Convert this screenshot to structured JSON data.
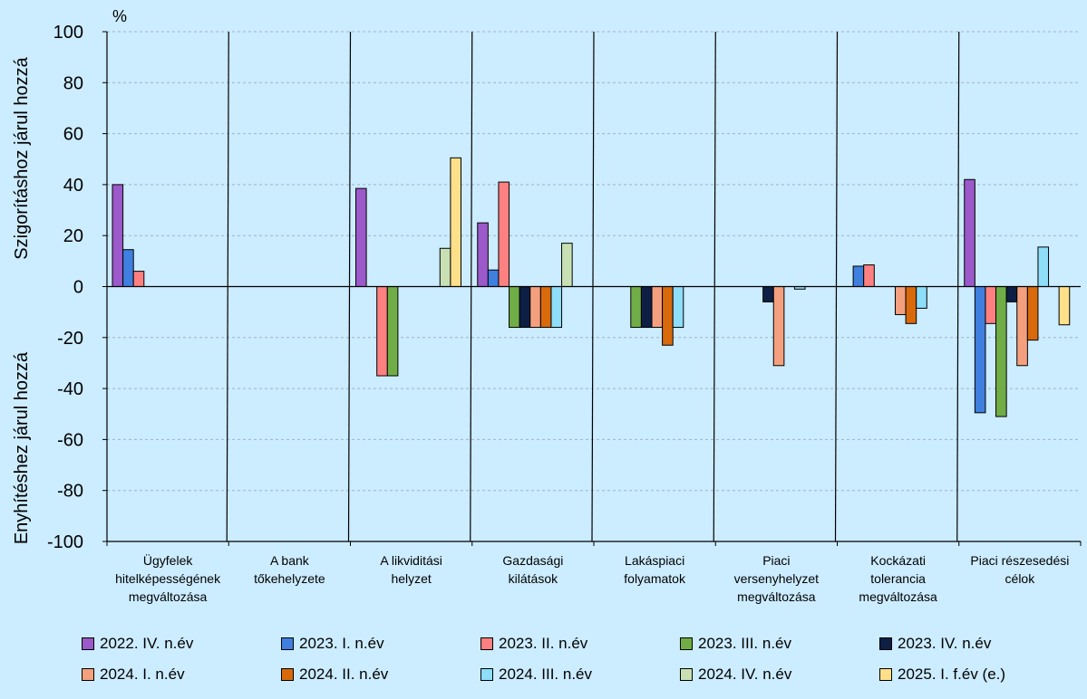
{
  "chart_data": {
    "type": "bar",
    "unit_label": "%",
    "ylabel_top": "Szigorításhoz járul hozzá",
    "ylabel_bottom": "Enyhítéshez járul hozzá",
    "ylim": [
      -100,
      100
    ],
    "yticks": [
      -100,
      -80,
      -60,
      -40,
      -20,
      0,
      20,
      40,
      60,
      80,
      100
    ],
    "grid": true,
    "legend_position": "bottom",
    "categories": [
      [
        "Ügyfelek",
        "hitelképességének",
        "megváltozása"
      ],
      [
        "A bank",
        "tőkehelyzete"
      ],
      [
        "A likviditási",
        "helyzet"
      ],
      [
        "Gazdasági",
        "kilátások"
      ],
      [
        "Lakáspiaci",
        "folyamatok"
      ],
      [
        "Piaci",
        "versenyhelyzet",
        "megváltozása"
      ],
      [
        "Kockázati",
        "tolerancia",
        "megváltozása"
      ],
      [
        "Piaci részesedési",
        "célok"
      ]
    ],
    "series": [
      {
        "name": "2022. IV. n.év",
        "color": "#9B59C9",
        "values": [
          40,
          0,
          38.5,
          25,
          0,
          0,
          0,
          42
        ]
      },
      {
        "name": "2023. I. n.év",
        "color": "#3F7FDF",
        "values": [
          14.5,
          0,
          0,
          6.5,
          0,
          0,
          8,
          -49.5
        ]
      },
      {
        "name": "2023. II. n.év",
        "color": "#FF8080",
        "values": [
          6,
          0,
          -35,
          41,
          0,
          0,
          8.5,
          -14.5
        ]
      },
      {
        "name": "2023. III. n.év",
        "color": "#70AD47",
        "values": [
          0,
          0,
          -35,
          -16,
          -16,
          0,
          0,
          -51
        ]
      },
      {
        "name": "2023. IV. n.év",
        "color": "#0E1F45",
        "values": [
          0,
          0,
          0,
          -16,
          -16,
          -6,
          0,
          -6
        ]
      },
      {
        "name": "2024. I. n.év",
        "color": "#F4A07E",
        "values": [
          0,
          0,
          0,
          -16,
          -16,
          -31,
          -11,
          -31
        ]
      },
      {
        "name": "2024. II. n.év",
        "color": "#D86A0C",
        "values": [
          0,
          0,
          0,
          -16,
          -23,
          0,
          -14.5,
          -21
        ]
      },
      {
        "name": "2024. III. n.év",
        "color": "#8EDDF9",
        "values": [
          0,
          0,
          0,
          -16,
          -16,
          -1,
          -8.5,
          15.5
        ]
      },
      {
        "name": "2024. IV. n.év",
        "color": "#C9E0B4",
        "values": [
          0,
          0,
          15,
          17,
          0,
          0,
          0,
          0
        ]
      },
      {
        "name": "2025. I. f.év (e.)",
        "color": "#FFE08A",
        "values": [
          0,
          0,
          50.5,
          0,
          0,
          0,
          0,
          -15
        ]
      }
    ]
  }
}
